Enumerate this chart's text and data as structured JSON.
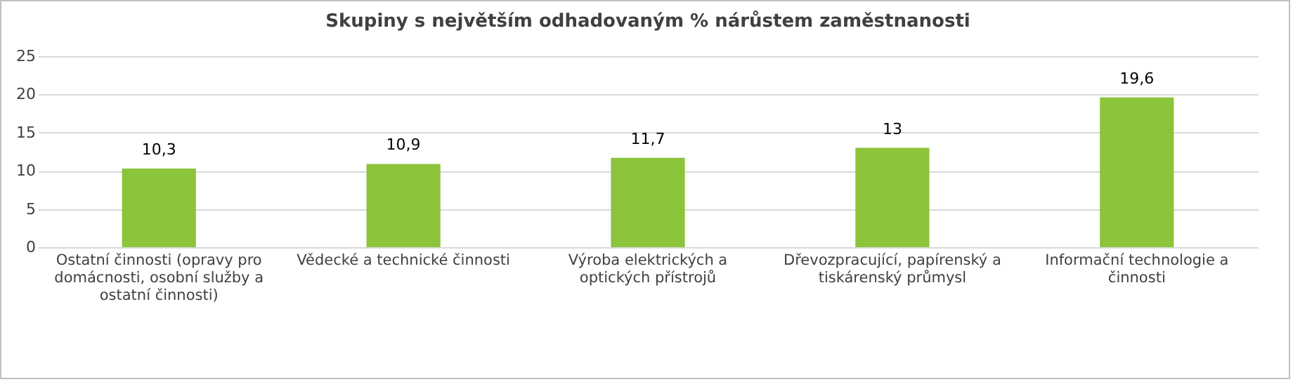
{
  "chart_data": {
    "type": "bar",
    "title": "Skupiny s největším odhadovaným % nárůstem zaměstnanosti",
    "categories": [
      "Ostatní činnosti (opravy pro domácnosti, osobní služby a ostatní činnosti)",
      "Vědecké a technické činnosti",
      "Výroba elektrických a optických přístrojů",
      "Dřevozpracující, papírenský a tiskárenský průmysl",
      "Informační technologie a činnosti"
    ],
    "values": [
      10.3,
      10.9,
      11.7,
      13,
      19.6
    ],
    "value_labels": [
      "10,3",
      "10,9",
      "11,7",
      "13",
      "19,6"
    ],
    "color": "#8cc43c",
    "ylim": [
      0,
      25
    ],
    "yticks": [
      0,
      5,
      10,
      15,
      20,
      25
    ],
    "grid": "y"
  }
}
